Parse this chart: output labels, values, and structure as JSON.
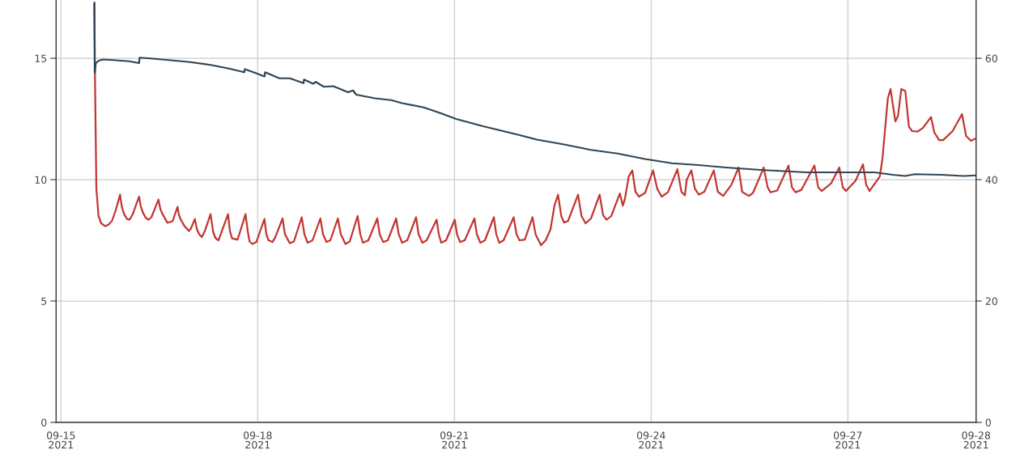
{
  "chart_data": {
    "type": "line",
    "grid": true,
    "xlim": [
      "2021-09-14T22:13",
      "2021-09-28T22:56"
    ],
    "xticks": [
      {
        "value": "2021-09-15",
        "label": "09-15\n2021"
      },
      {
        "value": "2021-09-18",
        "label": "09-18\n2021"
      },
      {
        "value": "2021-09-21",
        "label": "09-21\n2021"
      },
      {
        "value": "2021-09-24",
        "label": "09-24\n2021"
      },
      {
        "value": "2021-09-27",
        "label": "09-27\n2021"
      },
      {
        "value": "2021-09-28T22:56",
        "label": "09-28\n2021"
      }
    ],
    "ylim": [
      0,
      17.4
    ],
    "yticks": [
      0,
      5,
      10,
      15
    ],
    "y2lim": [
      0,
      69.6
    ],
    "y2ticks": [
      0,
      20,
      40,
      60
    ],
    "series": [
      {
        "color": "#c23531",
        "x": [
          "2021-09-15T12:13",
          "2021-09-15T12:30",
          "2021-09-15T12:57",
          "2021-09-15T13:45",
          "2021-09-15T14:44",
          "2021-09-15T16:13",
          "2021-09-15T17:24",
          "2021-09-15T18:40",
          "2021-09-15T20:04",
          "2021-09-15T21:38",
          "2021-09-15T22:17",
          "2021-09-15T23:07",
          "2021-09-16T00:12",
          "2021-09-16T01:06",
          "2021-09-16T02:17",
          "2021-09-16T04:34",
          "2021-09-16T05:15",
          "2021-09-16T06:03",
          "2021-09-16T07:01",
          "2021-09-16T08:00",
          "2021-09-16T09:06",
          "2021-09-16T11:41",
          "2021-09-16T12:21",
          "2021-09-16T12:57",
          "2021-09-16T14:56",
          "2021-09-16T15:55",
          "2021-09-16T16:53",
          "2021-09-16T18:40",
          "2021-09-16T19:10",
          "2021-09-16T19:51",
          "2021-09-16T21:15",
          "2021-09-16T22:49",
          "2021-09-16T23:37",
          "2021-09-17T01:00",
          "2021-09-17T01:47",
          "2021-09-17T02:35",
          "2021-09-17T03:33",
          "2021-09-17T04:39",
          "2021-09-17T06:44",
          "2021-09-17T07:42",
          "2021-09-17T08:30",
          "2021-09-17T09:41",
          "2021-09-17T10:53",
          "2021-09-17T13:09",
          "2021-09-17T13:50",
          "2021-09-17T14:38",
          "2021-09-17T16:36",
          "2021-09-17T17:24",
          "2021-09-17T19:33",
          "2021-09-17T20:21",
          "2021-09-17T21:02",
          "2021-09-17T22:03",
          "2021-09-17T23:32",
          "2021-09-18T00:30",
          "2021-09-18T02:29",
          "2021-09-18T03:10",
          "2021-09-18T03:58",
          "2021-09-18T05:27",
          "2021-09-18T06:26",
          "2021-09-18T09:06",
          "2021-09-18T09:59",
          "2021-09-18T11:46",
          "2021-09-18T13:15",
          "2021-09-18T16:07",
          "2021-09-18T17:06",
          "2021-09-18T18:17",
          "2021-09-18T20:04",
          "2021-09-18T22:56",
          "2021-09-18T23:55",
          "2021-09-19T01:11",
          "2021-09-19T02:35",
          "2021-09-19T05:20",
          "2021-09-19T06:26",
          "2021-09-19T08:07",
          "2021-09-19T09:41",
          "2021-09-19T12:34",
          "2021-09-19T13:33",
          "2021-09-19T14:31",
          "2021-09-19T16:30",
          "2021-09-19T19:46",
          "2021-09-19T20:39",
          "2021-09-19T21:56",
          "2021-09-19T23:37",
          "2021-09-20T02:40",
          "2021-09-20T03:37",
          "2021-09-20T04:52",
          "2021-09-20T06:44",
          "2021-09-20T09:59",
          "2021-09-20T10:53",
          "2021-09-20T12:16",
          "2021-09-20T13:50",
          "2021-09-20T17:29",
          "2021-09-20T18:17",
          "2021-09-20T19:10",
          "2021-09-20T20:57",
          "2021-09-21T00:07",
          "2021-09-21T00:57",
          "2021-09-21T02:04",
          "2021-09-21T03:46",
          "2021-09-21T07:19",
          "2021-09-21T08:13",
          "2021-09-21T09:29",
          "2021-09-21T11:10",
          "2021-09-21T14:26",
          "2021-09-21T15:19",
          "2021-09-21T16:25",
          "2021-09-21T17:59",
          "2021-09-21T21:41",
          "2021-09-21T22:44",
          "2021-09-21T23:49",
          "2021-09-22T01:47",
          "2021-09-22T04:34",
          "2021-09-22T05:45",
          "2021-09-22T07:42",
          "2021-09-22T09:24",
          "2021-09-22T11:10",
          "2021-09-22T12:39",
          "2021-09-22T13:56",
          "2021-09-22T15:07",
          "2021-09-22T16:07",
          "2021-09-22T17:36",
          "2021-09-22T21:15",
          "2021-09-22T22:31",
          "2021-09-23T00:00",
          "2021-09-23T01:59",
          "2021-09-23T05:09",
          "2021-09-23T06:26",
          "2021-09-23T07:42",
          "2021-09-23T09:24",
          "2021-09-23T12:34",
          "2021-09-23T13:38",
          "2021-09-23T14:21",
          "2021-09-23T15:49",
          "2021-09-23T17:06",
          "2021-09-23T18:17",
          "2021-09-23T19:33",
          "2021-09-23T21:45",
          "2021-09-24T00:43",
          "2021-09-24T02:12",
          "2021-09-24T03:51",
          "2021-09-24T06:08",
          "2021-09-24T09:36",
          "2021-09-24T11:05",
          "2021-09-24T12:21",
          "2021-09-24T13:02",
          "2021-09-24T14:44",
          "2021-09-24T16:00",
          "2021-09-24T17:29",
          "2021-09-24T19:28",
          "2021-09-24T22:56",
          "2021-09-25T00:25",
          "2021-09-25T02:22",
          "2021-09-25T05:20",
          "2021-09-25T08:00",
          "2021-09-25T09:18",
          "2021-09-25T11:46",
          "2021-09-25T13:15",
          "2021-09-25T16:13",
          "2021-09-25T17:11",
          "2021-09-25T18:40",
          "2021-09-25T19:41",
          "2021-09-25T22:08",
          "2021-09-26T02:17",
          "2021-09-26T03:33",
          "2021-09-26T04:52",
          "2021-09-26T07:01",
          "2021-09-26T11:46",
          "2021-09-26T13:09",
          "2021-09-26T14:26",
          "2021-09-26T17:54",
          "2021-09-26T20:52",
          "2021-09-26T22:08",
          "2021-09-26T23:19",
          "2021-09-27T02:47",
          "2021-09-27T05:32",
          "2021-09-27T06:44",
          "2021-09-27T07:55",
          "2021-09-27T11:41",
          "2021-09-27T12:39",
          "2021-09-27T14:38",
          "2021-09-27T15:37",
          "2021-09-27T17:24",
          "2021-09-27T18:22",
          "2021-09-27T19:33",
          "2021-09-27T21:02",
          "2021-09-27T22:21",
          "2021-09-27T23:32",
          "2021-09-28T01:29",
          "2021-09-28T03:28",
          "2021-09-28T06:26",
          "2021-09-28T07:37",
          "2021-09-28T09:24",
          "2021-09-28T10:53",
          "2021-09-28T14:21",
          "2021-09-28T17:47",
          "2021-09-28T19:16",
          "2021-09-28T21:02",
          "2021-09-28T22:56"
        ],
        "values": [
          17.25,
          13.75,
          9.63,
          8.5,
          8.2,
          8.08,
          8.15,
          8.3,
          8.75,
          9.38,
          8.88,
          8.58,
          8.38,
          8.35,
          8.58,
          9.3,
          8.88,
          8.63,
          8.43,
          8.35,
          8.45,
          9.18,
          8.8,
          8.63,
          8.23,
          8.25,
          8.3,
          8.88,
          8.55,
          8.35,
          8.08,
          7.88,
          8.0,
          8.38,
          7.95,
          7.75,
          7.63,
          7.88,
          8.58,
          7.85,
          7.6,
          7.5,
          7.88,
          8.58,
          7.88,
          7.58,
          7.53,
          7.8,
          8.58,
          7.88,
          7.45,
          7.35,
          7.43,
          7.75,
          8.38,
          7.75,
          7.5,
          7.43,
          7.63,
          8.4,
          7.75,
          7.38,
          7.45,
          8.45,
          7.75,
          7.4,
          7.5,
          8.4,
          7.75,
          7.43,
          7.5,
          8.4,
          7.75,
          7.35,
          7.45,
          8.5,
          7.75,
          7.4,
          7.5,
          8.4,
          7.75,
          7.43,
          7.5,
          8.4,
          7.75,
          7.4,
          7.5,
          8.45,
          7.75,
          7.4,
          7.5,
          8.35,
          7.75,
          7.4,
          7.5,
          8.35,
          7.75,
          7.43,
          7.5,
          8.4,
          7.75,
          7.4,
          7.5,
          8.45,
          7.75,
          7.4,
          7.5,
          8.45,
          7.75,
          7.5,
          7.53,
          8.45,
          7.73,
          7.3,
          7.5,
          7.95,
          8.95,
          9.38,
          8.5,
          8.23,
          8.3,
          9.38,
          8.5,
          8.2,
          8.4,
          9.38,
          8.53,
          8.35,
          8.5,
          9.43,
          8.93,
          9.18,
          10.13,
          10.38,
          9.5,
          9.3,
          9.45,
          10.38,
          9.63,
          9.3,
          9.48,
          10.43,
          9.5,
          9.35,
          10.0,
          10.38,
          9.63,
          9.38,
          9.5,
          10.38,
          9.5,
          9.33,
          9.78,
          10.5,
          9.5,
          9.33,
          9.45,
          10.23,
          10.5,
          9.68,
          9.48,
          9.55,
          10.58,
          9.68,
          9.48,
          9.58,
          10.58,
          9.68,
          9.53,
          9.85,
          10.5,
          9.68,
          9.53,
          9.95,
          10.63,
          9.78,
          9.53,
          10.13,
          10.85,
          13.35,
          13.73,
          12.4,
          12.63,
          13.73,
          13.65,
          12.18,
          12.0,
          11.98,
          12.13,
          12.58,
          11.95,
          11.63,
          11.63,
          12.0,
          12.7,
          11.8,
          11.6,
          11.7
        ]
      },
      {
        "color": "#2f4554",
        "axis": "y2",
        "x": [
          "2021-09-15T12:13",
          "2021-09-15T12:21",
          "2021-09-15T12:45",
          "2021-09-15T13:50",
          "2021-09-15T15:19",
          "2021-09-15T19:10",
          "2021-09-16T01:06",
          "2021-09-16T04:34",
          "2021-09-16T04:48",
          "2021-09-16T07:55",
          "2021-09-16T12:57",
          "2021-09-16T22:44",
          "2021-09-17T06:44",
          "2021-09-17T13:33",
          "2021-09-17T19:05",
          "2021-09-17T19:19",
          "2021-09-17T23:02",
          "2021-09-18T02:29",
          "2021-09-18T02:44",
          "2021-09-18T07:55",
          "2021-09-18T11:46",
          "2021-09-18T16:48",
          "2021-09-18T16:57",
          "2021-09-18T20:16",
          "2021-09-18T21:15",
          "2021-09-19T00:12",
          "2021-09-19T03:40",
          "2021-09-19T09:06",
          "2021-09-19T10:53",
          "2021-09-19T12:04",
          "2021-09-19T18:58",
          "2021-09-20T00:53",
          "2021-09-20T04:52",
          "2021-09-20T12:45",
          "2021-09-20T18:40",
          "2021-09-21T00:36",
          "2021-09-21T10:29",
          "2021-09-21T23:19",
          "2021-09-22T06:08",
          "2021-09-22T16:07",
          "2021-09-23T01:59",
          "2021-09-23T11:46",
          "2021-09-23T21:45",
          "2021-09-24T07:37",
          "2021-09-24T17:24",
          "2021-09-25T03:23",
          "2021-09-25T16:13",
          "2021-09-26T09:01",
          "2021-09-26T23:49",
          "2021-09-27T09:41",
          "2021-09-27T16:30",
          "2021-09-27T20:57",
          "2021-09-28T00:30",
          "2021-09-28T10:17",
          "2021-09-28T18:17",
          "2021-09-28T22:56"
        ],
        "values": [
          69.2,
          57.6,
          59.2,
          59.6,
          59.8,
          59.7,
          59.5,
          59.2,
          60.1,
          60.0,
          59.8,
          59.4,
          58.9,
          58.3,
          57.7,
          58.2,
          57.6,
          57.0,
          57.7,
          56.7,
          56.7,
          55.9,
          56.5,
          55.8,
          56.1,
          55.3,
          55.4,
          54.4,
          54.7,
          54.0,
          53.4,
          53.1,
          52.6,
          51.9,
          51.0,
          50.0,
          48.8,
          47.4,
          46.6,
          45.8,
          44.9,
          44.3,
          43.4,
          42.7,
          42.4,
          42.0,
          41.6,
          41.2,
          41.2,
          41.2,
          40.8,
          40.6,
          40.9,
          40.8,
          40.6,
          40.7
        ]
      }
    ]
  }
}
